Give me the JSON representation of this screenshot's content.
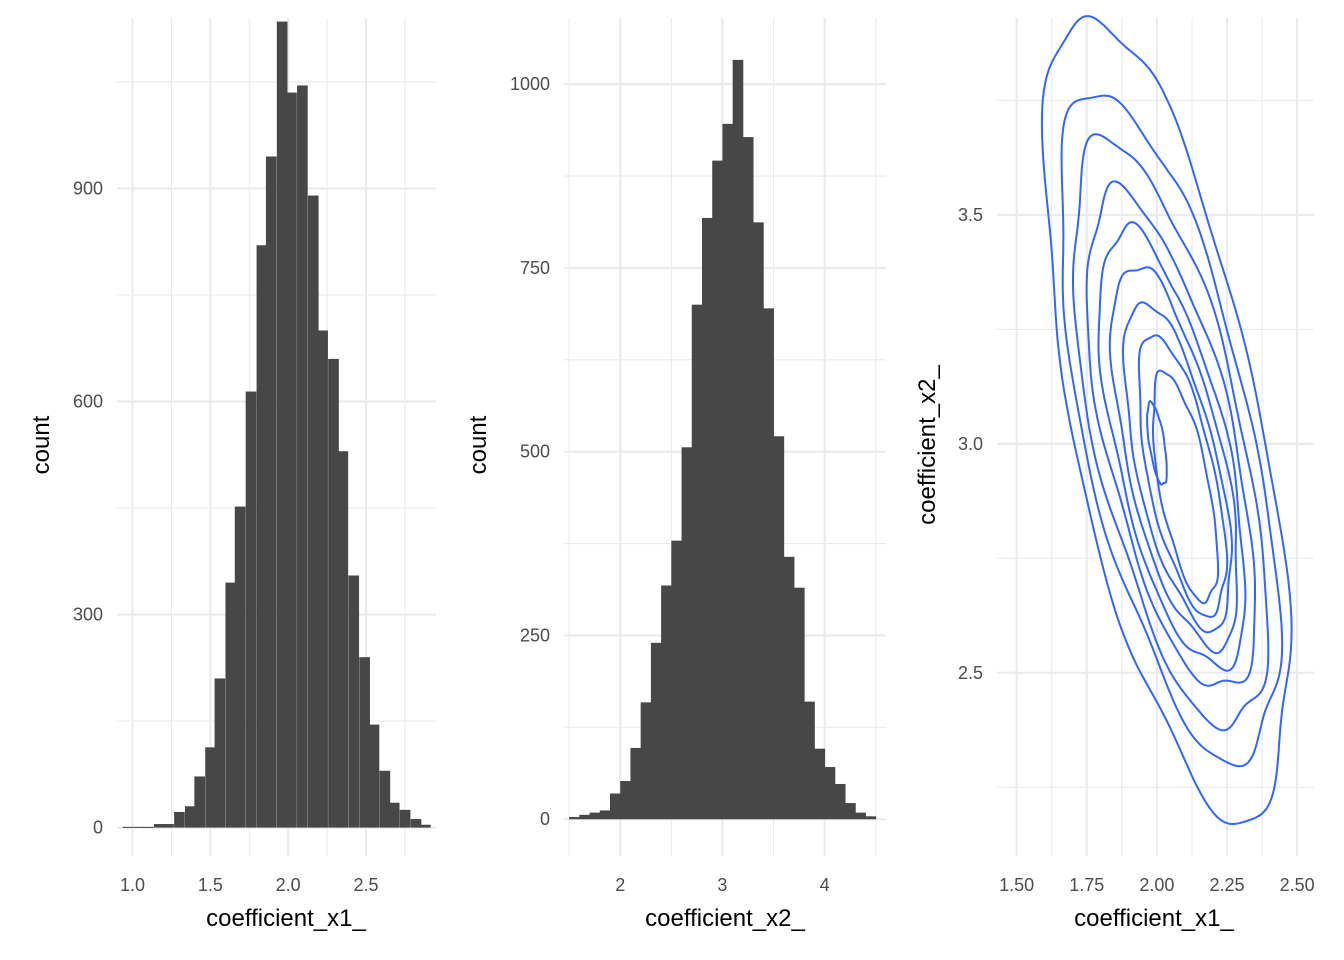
{
  "chart_data": [
    {
      "type": "bar",
      "subtype": "histogram",
      "xlabel": "coefficient_x1_",
      "ylabel": "count",
      "xlim": [
        0.9,
        2.95
      ],
      "ylim": [
        -40,
        1140
      ],
      "x_ticks": [
        1.0,
        1.5,
        2.0,
        2.5
      ],
      "x_tick_labels": [
        "1.0",
        "1.5",
        "2.0",
        "2.5"
      ],
      "y_ticks": [
        0,
        300,
        600,
        900
      ],
      "y_tick_labels": [
        "0",
        "300",
        "600",
        "900"
      ],
      "grid": true,
      "bar_color": "#474747",
      "bin_width": 0.066,
      "bin_centers": [
        0.97,
        1.04,
        1.1,
        1.17,
        1.23,
        1.3,
        1.37,
        1.43,
        1.5,
        1.56,
        1.63,
        1.69,
        1.76,
        1.83,
        1.89,
        1.96,
        2.02,
        2.09,
        2.16,
        2.22,
        2.29,
        2.35,
        2.42,
        2.49,
        2.55,
        2.62,
        2.68,
        2.75,
        2.82,
        2.88
      ],
      "counts": [
        1,
        1,
        1,
        5,
        5,
        22,
        30,
        72,
        113,
        210,
        345,
        452,
        614,
        820,
        945,
        1135,
        1035,
        1045,
        890,
        700,
        660,
        530,
        355,
        240,
        145,
        80,
        35,
        25,
        12,
        4
      ]
    },
    {
      "type": "bar",
      "subtype": "histogram",
      "xlabel": "coefficient_x2_",
      "ylabel": "count",
      "xlim": [
        1.45,
        4.6
      ],
      "ylim": [
        -50,
        1090
      ],
      "x_ticks": [
        2,
        3,
        4
      ],
      "x_tick_labels": [
        "2",
        "3",
        "4"
      ],
      "y_ticks": [
        0,
        250,
        500,
        750,
        1000
      ],
      "y_tick_labels": [
        "0",
        "250",
        "500",
        "750",
        "1000"
      ],
      "grid": true,
      "bar_color": "#474747",
      "bin_width": 0.1,
      "bin_centers": [
        1.55,
        1.65,
        1.75,
        1.85,
        1.95,
        2.05,
        2.15,
        2.25,
        2.35,
        2.45,
        2.55,
        2.65,
        2.75,
        2.85,
        2.95,
        3.05,
        3.15,
        3.25,
        3.35,
        3.45,
        3.55,
        3.65,
        3.75,
        3.85,
        3.95,
        4.05,
        4.15,
        4.25,
        4.35,
        4.45
      ],
      "counts": [
        3,
        6,
        9,
        12,
        35,
        52,
        97,
        159,
        240,
        318,
        379,
        506,
        700,
        818,
        896,
        946,
        1033,
        928,
        812,
        695,
        521,
        357,
        315,
        160,
        96,
        71,
        48,
        22,
        9,
        4
      ]
    },
    {
      "type": "contour",
      "subtype": "2d density",
      "xlabel": "coefficient_x1_",
      "ylabel": "coefficient_x2_",
      "xlim": [
        1.43,
        2.56
      ],
      "ylim": [
        2.1,
        3.93
      ],
      "x_ticks": [
        1.5,
        1.75,
        2.0,
        2.25,
        2.5
      ],
      "x_tick_labels": [
        "1.50",
        "1.75",
        "2.00",
        "2.25",
        "2.50"
      ],
      "y_ticks": [
        2.5,
        3.0,
        3.5
      ],
      "y_tick_labels": [
        "2.5",
        "3.0",
        "3.5"
      ],
      "grid": true,
      "line_color": "#3366ff",
      "center": [
        2.03,
        3.0
      ],
      "correlation": -0.62,
      "contour_levels": [
        {
          "x_halfwidth": 0.435,
          "y_halfwidth": 0.865,
          "x_shift": 0.005,
          "y_shift": 0.045,
          "bulge": 0.06
        },
        {
          "x_halfwidth": 0.39,
          "y_halfwidth": 0.72,
          "x_shift": 0.012,
          "y_shift": 0.025,
          "bulge": 0.05
        },
        {
          "x_halfwidth": 0.345,
          "y_halfwidth": 0.63,
          "x_shift": 0.015,
          "y_shift": 0.01,
          "bulge": 0.045
        },
        {
          "x_halfwidth": 0.3,
          "y_halfwidth": 0.535,
          "x_shift": 0.02,
          "y_shift": -0.005,
          "bulge": 0.04
        },
        {
          "x_halfwidth": 0.26,
          "y_halfwidth": 0.47,
          "x_shift": 0.025,
          "y_shift": -0.02,
          "bulge": 0.04
        },
        {
          "x_halfwidth": 0.225,
          "y_halfwidth": 0.41,
          "x_shift": 0.035,
          "y_shift": -0.035,
          "bulge": 0.035
        },
        {
          "x_halfwidth": 0.19,
          "y_halfwidth": 0.35,
          "x_shift": 0.045,
          "y_shift": -0.055,
          "bulge": 0.035
        },
        {
          "x_halfwidth": 0.155,
          "y_halfwidth": 0.3,
          "x_shift": 0.06,
          "y_shift": -0.075,
          "bulge": 0.03
        },
        {
          "x_halfwidth": 0.115,
          "y_halfwidth": 0.245,
          "x_shift": 0.07,
          "y_shift": -0.1,
          "bulge": 0.025
        },
        {
          "x_halfwidth": 0.035,
          "y_halfwidth": 0.09,
          "x_shift": -0.03,
          "y_shift": 0.0,
          "bulge": 0.0
        }
      ]
    }
  ]
}
